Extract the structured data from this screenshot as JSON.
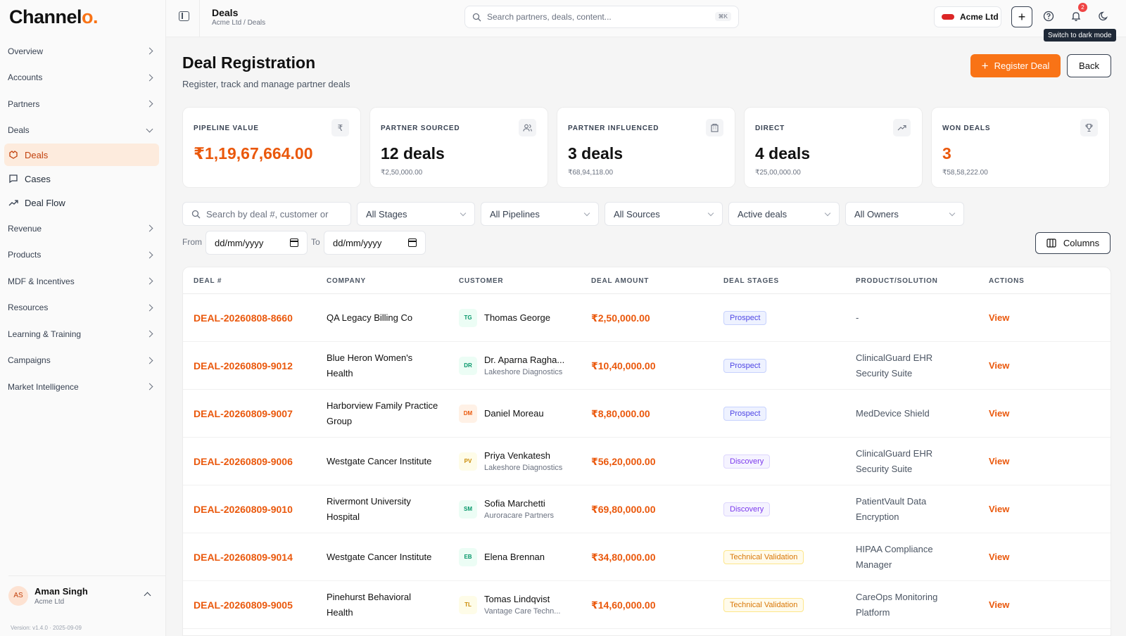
{
  "app": {
    "logo_main": "Channel",
    "logo_accent": "o."
  },
  "sidebar": {
    "items": [
      {
        "label": "Overview"
      },
      {
        "label": "Accounts"
      },
      {
        "label": "Partners"
      },
      {
        "label": "Deals"
      },
      {
        "label": "Revenue"
      },
      {
        "label": "Products"
      },
      {
        "label": "MDF & Incentives"
      },
      {
        "label": "Resources"
      },
      {
        "label": "Learning & Training"
      },
      {
        "label": "Campaigns"
      },
      {
        "label": "Market Intelligence"
      }
    ],
    "deals_sub": [
      {
        "label": "Deals",
        "icon": "handshake-icon"
      },
      {
        "label": "Cases",
        "icon": "message-square-icon"
      },
      {
        "label": "Deal Flow",
        "icon": "trending-up-icon"
      }
    ],
    "user": {
      "initials": "AS",
      "name": "Aman Singh",
      "org": "Acme Ltd"
    },
    "version": "Version: v1.4.0 · 2025-09-09"
  },
  "topbar": {
    "title": "Deals",
    "breadcrumb": "Acme Ltd / Deals",
    "search_placeholder": "Search partners, deals, content...",
    "shortcut": "⌘K",
    "org_name": "Acme Ltd",
    "notification_count": "2",
    "tooltip": "Switch to dark mode",
    "accent_color": "#f97316"
  },
  "header": {
    "title": "Deal Registration",
    "subtitle": "Register, track and manage partner deals",
    "register_label": "Register Deal",
    "back_label": "Back"
  },
  "stats": [
    {
      "label": "PIPELINE VALUE",
      "value": "₹1,19,67,664.00",
      "sub": "",
      "icon": "rupee-icon"
    },
    {
      "label": "PARTNER SOURCED",
      "value": "12 deals",
      "sub": "₹2,50,000.00",
      "icon": "users-icon"
    },
    {
      "label": "PARTNER INFLUENCED",
      "value": "3 deals",
      "sub": "₹68,94,118.00",
      "icon": "building-icon"
    },
    {
      "label": "DIRECT",
      "value": "4 deals",
      "sub": "₹25,00,000.00",
      "icon": "trending-up-icon"
    },
    {
      "label": "WON DEALS",
      "value": "3",
      "sub": "₹58,58,222.00",
      "icon": "trophy-icon"
    }
  ],
  "filters": {
    "search_placeholder": "Search by deal #, customer or",
    "stages": "All Stages",
    "pipelines": "All Pipelines",
    "sources": "All Sources",
    "status": "Active deals",
    "owners": "All Owners",
    "from_label": "From",
    "to_label": "To",
    "date_placeholder": "dd/mm/yyyy",
    "columns_label": "Columns"
  },
  "table": {
    "headers": [
      "DEAL #",
      "COMPANY",
      "CUSTOMER",
      "DEAL AMOUNT",
      "DEAL STAGES",
      "PRODUCT/SOLUTION",
      "ACTIONS"
    ],
    "rows": [
      {
        "deal": "DEAL-20260808-8660",
        "company": "QA Legacy Billing Co",
        "initials": "TG",
        "customer": "Thomas George",
        "customer_org": "",
        "amount": "₹2,50,000.00",
        "stage": "Prospect",
        "product": "-",
        "action": "View"
      },
      {
        "deal": "DEAL-20260809-9012",
        "company": "Blue Heron Women's Health",
        "initials": "DR",
        "customer": "Dr. Aparna Ragha...",
        "customer_org": "Lakeshore Diagnostics",
        "amount": "₹10,40,000.00",
        "stage": "Prospect",
        "product": "ClinicalGuard EHR Security Suite",
        "action": "View"
      },
      {
        "deal": "DEAL-20260809-9007",
        "company": "Harborview Family Practice Group",
        "initials": "DM",
        "customer": "Daniel Moreau",
        "customer_org": "",
        "amount": "₹8,80,000.00",
        "stage": "Prospect",
        "product": "MedDevice Shield",
        "action": "View"
      },
      {
        "deal": "DEAL-20260809-9006",
        "company": "Westgate Cancer Institute",
        "initials": "PV",
        "customer": "Priya Venkatesh",
        "customer_org": "Lakeshore Diagnostics",
        "amount": "₹56,20,000.00",
        "stage": "Discovery",
        "product": "ClinicalGuard EHR Security Suite",
        "action": "View"
      },
      {
        "deal": "DEAL-20260809-9010",
        "company": "Rivermont University Hospital",
        "initials": "SM",
        "customer": "Sofia Marchetti",
        "customer_org": "Auroracare Partners",
        "amount": "₹69,80,000.00",
        "stage": "Discovery",
        "product": "PatientVault Data Encryption",
        "action": "View"
      },
      {
        "deal": "DEAL-20260809-9014",
        "company": "Westgate Cancer Institute",
        "initials": "EB",
        "customer": "Elena Brennan",
        "customer_org": "",
        "amount": "₹34,80,000.00",
        "stage": "Technical Validation",
        "product": "HIPAA Compliance Manager",
        "action": "View"
      },
      {
        "deal": "DEAL-20260809-9005",
        "company": "Pinehurst Behavioral Health",
        "initials": "TL",
        "customer": "Tomas Lindqvist",
        "customer_org": "Vantage Care Techn...",
        "amount": "₹14,60,000.00",
        "stage": "Technical Validation",
        "product": "CareOps Monitoring Platform",
        "action": "View"
      }
    ]
  }
}
